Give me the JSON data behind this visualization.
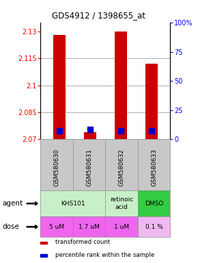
{
  "title": "GDS4912 / 1398655_at",
  "samples": [
    "GSM580630",
    "GSM580631",
    "GSM580632",
    "GSM580633"
  ],
  "red_values": [
    2.128,
    2.074,
    2.13,
    2.112
  ],
  "blue_values": [
    2.0745,
    2.0755,
    2.0745,
    2.0745
  ],
  "red_base": 2.07,
  "ylim": [
    2.07,
    2.135
  ],
  "yticks": [
    2.07,
    2.085,
    2.1,
    2.115,
    2.13
  ],
  "ytick_labels": [
    "2.07",
    "2.085",
    "2.1",
    "2.115",
    "2.13"
  ],
  "right_ytick_pct": [
    0,
    25,
    50,
    75,
    100
  ],
  "right_ytick_labels": [
    "0",
    "25",
    "50",
    "75",
    "100%"
  ],
  "bar_color": "#cc0000",
  "dot_color": "#0000cc",
  "bar_width": 0.4,
  "dot_size": 40,
  "agent_merged": [
    {
      "label": "KHS101",
      "start": 0,
      "end": 1,
      "color": "#c8f0c8"
    },
    {
      "label": "retinoic\nacid",
      "start": 2,
      "end": 2,
      "color": "#c8f0c8"
    },
    {
      "label": "DMSO",
      "start": 3,
      "end": 3,
      "color": "#33cc44"
    }
  ],
  "doses": [
    "5 uM",
    "1.7 uM",
    "1 uM",
    "0.1 %"
  ],
  "dose_colors": [
    "#ee66ee",
    "#ee66ee",
    "#ee66ee",
    "#f0b8f0"
  ],
  "sample_bg_color": "#c8c8c8",
  "legend_items": [
    {
      "color": "#cc0000",
      "label": "transformed count"
    },
    {
      "color": "#0000cc",
      "label": "percentile rank within the sample"
    }
  ]
}
